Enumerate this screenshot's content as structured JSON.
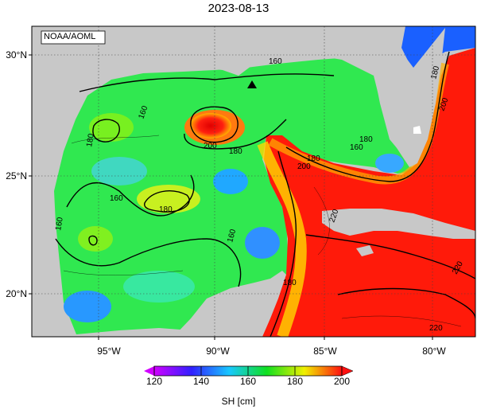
{
  "title": "2023-08-13",
  "credit": "NOAA/AOML",
  "y_axis_labels": [
    "30°N",
    "25°N",
    "20°N"
  ],
  "x_axis_labels": [
    "95°W",
    "90°W",
    "85°W",
    "80°W"
  ],
  "contour_labels": [
    "160",
    "180",
    "160",
    "180",
    "160",
    "200",
    "180",
    "180",
    "200",
    "180",
    "160",
    "160",
    "180",
    "160",
    "200",
    "180",
    "220",
    "220",
    "220"
  ],
  "colorbar": {
    "ticks": [
      "120",
      "140",
      "160",
      "180",
      "200"
    ],
    "unit_label": "SH [cm]",
    "colors": [
      "#d000ff",
      "#3020ff",
      "#18c8ff",
      "#10e020",
      "#f0f000",
      "#ff1010"
    ]
  },
  "colors": {
    "land": "#c8c8c8",
    "loop_current": "#ff1a0a",
    "gulf_interior": "#30e850",
    "marker": "#000000"
  },
  "marker_icon": "triangle-marker-icon"
}
